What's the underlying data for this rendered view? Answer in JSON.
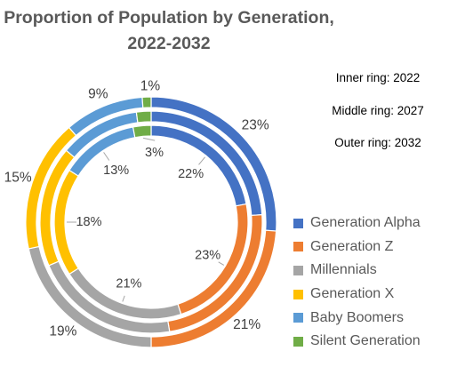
{
  "chart_data": {
    "type": "doughnut",
    "title": [
      "Proportion of Population by Generation,",
      "2022-2032"
    ],
    "notes": [
      "Inner ring: 2022",
      "Middle ring: 2027",
      "Outer ring: 2032"
    ],
    "categories": [
      "Generation Alpha",
      "Generation Z",
      "Millennials",
      "Generation X",
      "Baby Boomers",
      "Silent Generation"
    ],
    "series": [
      {
        "name": "2022",
        "ring": "inner",
        "values": [
          22,
          23,
          21,
          18,
          13,
          3
        ]
      },
      {
        "name": "2027",
        "ring": "middle",
        "values": [
          22.5,
          22,
          20,
          16.5,
          11,
          2
        ]
      },
      {
        "name": "2032",
        "ring": "outer",
        "values": [
          23,
          21,
          19,
          15,
          9,
          1
        ]
      }
    ],
    "data_labels": {
      "inner": [
        "22%",
        "23%",
        "21%",
        "18%",
        "13%",
        "3%"
      ],
      "outer": [
        "23%",
        "21%",
        "19%",
        "15%",
        "9%",
        "1%"
      ]
    },
    "colors": [
      "#4472C4",
      "#ED7D31",
      "#A5A5A5",
      "#FFC000",
      "#5B9BD5",
      "#70AD47"
    ],
    "legend_position": "right"
  }
}
